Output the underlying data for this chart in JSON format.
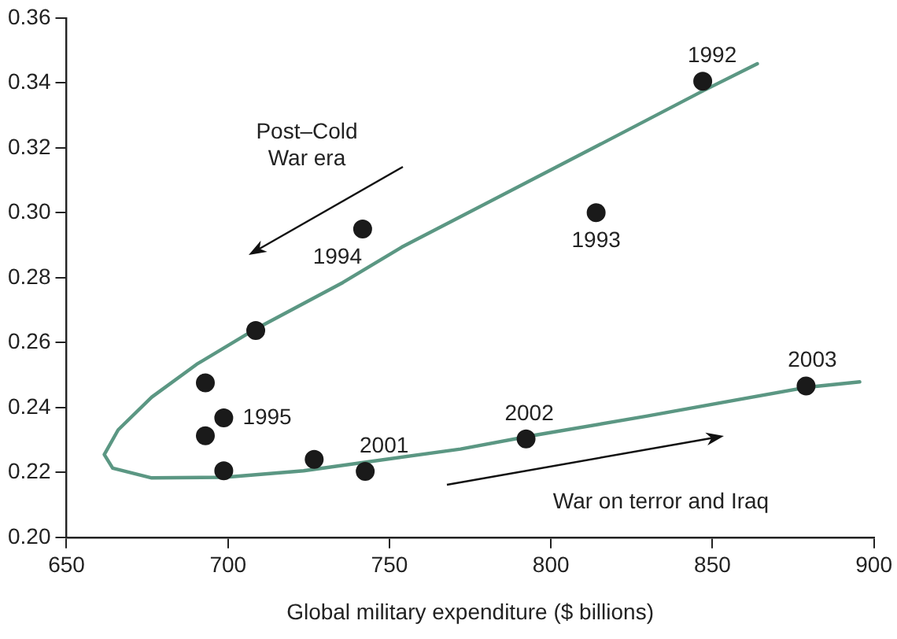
{
  "chart_data": {
    "type": "scatter",
    "xlabel": "Global military expenditure ($ billions)",
    "xlim": [
      650,
      900
    ],
    "xticks": [
      650,
      700,
      750,
      800,
      850,
      900
    ],
    "ylim": [
      0.2,
      0.36
    ],
    "yticks": [
      {
        "value": 0.2,
        "label": "0.20"
      },
      {
        "value": 0.22,
        "label": "0.22"
      },
      {
        "value": 0.24,
        "label": "0.24"
      },
      {
        "value": 0.26,
        "label": "0.26"
      },
      {
        "value": 0.28,
        "label": "0.28"
      },
      {
        "value": 0.3,
        "label": "0.30"
      },
      {
        "value": 0.32,
        "label": "0.32"
      },
      {
        "value": 0.34,
        "label": "0.34"
      },
      {
        "value": 0.36,
        "label": "0.36"
      }
    ],
    "grid": false,
    "legend": false,
    "series": [
      {
        "type": "scatter",
        "marker": "circle",
        "color": "#1a1a1a",
        "x": [
          847,
          814,
          741.7,
          708.6,
          693,
          698.7,
          693,
          698.7,
          726.7,
          742.5,
          792.3,
          879
        ],
        "values": [
          0.3405,
          0.3,
          0.295,
          0.2637,
          0.2476,
          0.2368,
          0.2313,
          0.2205,
          0.224,
          0.2203,
          0.2303,
          0.2466
        ]
      },
      {
        "type": "line",
        "marker": "none",
        "color": "#5b9783",
        "x": [
          863.9,
          847,
          813.8,
          753.8,
          735.6,
          708.6,
          690.3,
          676.4,
          666,
          661.7,
          664.3,
          676.4,
          699,
          723.4,
          772,
          794.7,
          829.5,
          879,
          895.6
        ],
        "values": [
          0.3459,
          0.3375,
          0.3203,
          0.2894,
          0.2785,
          0.2642,
          0.2533,
          0.2432,
          0.2331,
          0.2255,
          0.2213,
          0.2183,
          0.2185,
          0.2205,
          0.2272,
          0.2314,
          0.2373,
          0.2462,
          0.2479
        ]
      }
    ],
    "annotations": [
      {
        "text": "1992",
        "x": 847,
        "y": 0.3405
      },
      {
        "text": "1993",
        "x": 814,
        "y": 0.3
      },
      {
        "text": "1994",
        "x": 741.7,
        "y": 0.295
      },
      {
        "text": "1995",
        "x": 698.7,
        "y": 0.2368
      },
      {
        "text": "2001",
        "x": 742.5,
        "y": 0.2203
      },
      {
        "text": "2002",
        "x": 792.3,
        "y": 0.2303
      },
      {
        "text": "2003",
        "x": 879,
        "y": 0.2466
      },
      "Post–Cold War era",
      "War on terror and Iraq"
    ]
  }
}
